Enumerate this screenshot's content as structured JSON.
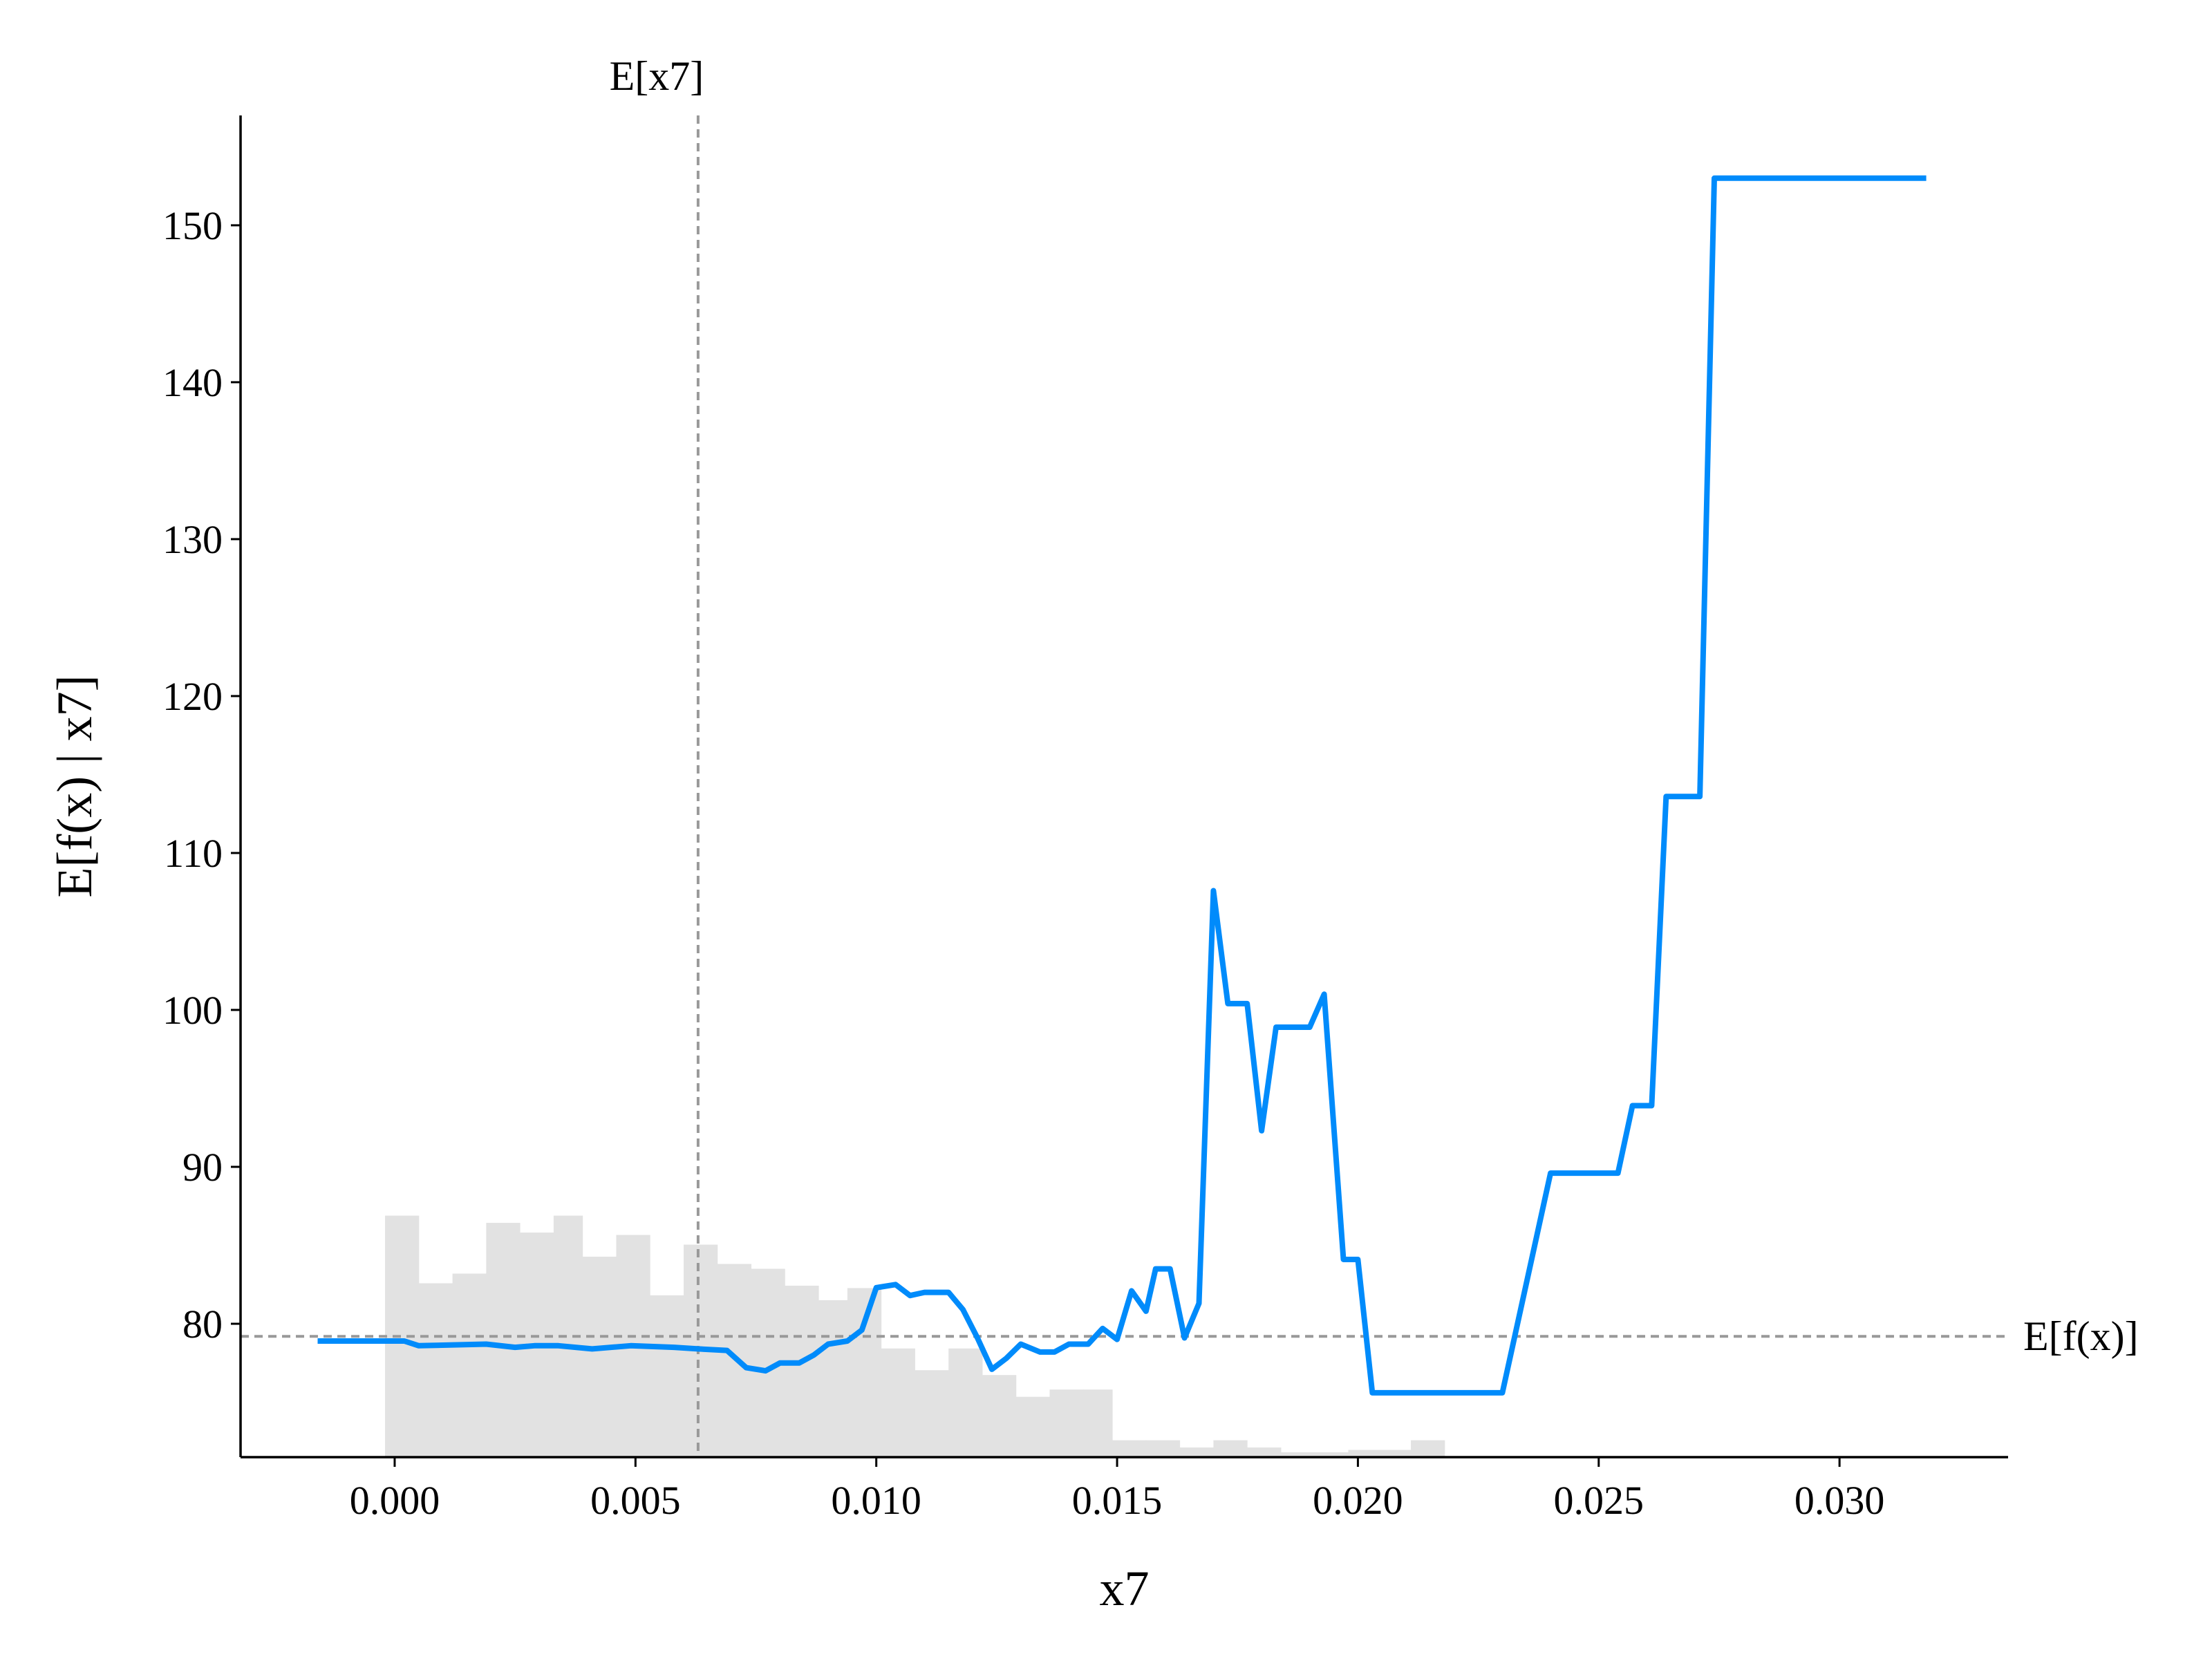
{
  "chart_data": {
    "type": "line",
    "xlabel": "x7",
    "ylabel": "E[f(x) | x7]",
    "xlim": [
      -0.0032,
      0.0335
    ],
    "ylim": [
      71.5,
      157
    ],
    "x_ticks": [
      0.0,
      0.005,
      0.01,
      0.015,
      0.02,
      0.025,
      0.03
    ],
    "x_tick_labels": [
      "0.000",
      "0.005",
      "0.010",
      "0.015",
      "0.020",
      "0.025",
      "0.030"
    ],
    "y_ticks": [
      80,
      90,
      100,
      110,
      120,
      130,
      140,
      150
    ],
    "y_tick_labels": [
      "80",
      "90",
      "100",
      "110",
      "120",
      "130",
      "140",
      "150"
    ],
    "grid": false,
    "reference_lines": {
      "vertical": {
        "x": 0.0063,
        "label": "E[x7]"
      },
      "horizontal": {
        "y": 79.2,
        "label": "E[f(x)]"
      }
    },
    "colors": {
      "line": "#008bfb",
      "reference": "#999999",
      "histogram": "#e2e2e2",
      "axis": "#000000"
    },
    "series": [
      {
        "x": [
          -0.0016,
          0.0002,
          0.0005,
          0.0019,
          0.0025,
          0.0029,
          0.0034,
          0.0041,
          0.0049,
          0.0058,
          0.0063,
          0.0069,
          0.0073,
          0.0077,
          0.008,
          0.0084,
          0.0087,
          0.009,
          0.0094,
          0.0097,
          0.01,
          0.0104,
          0.0107,
          0.011,
          0.0115,
          0.0118,
          0.0121,
          0.0124,
          0.0127,
          0.013,
          0.0134,
          0.0137,
          0.014,
          0.0144,
          0.0147,
          0.015,
          0.0153,
          0.0156,
          0.0158,
          0.0161,
          0.0164,
          0.0167,
          0.017,
          0.0173,
          0.0177,
          0.018,
          0.0183,
          0.0187,
          0.019,
          0.0193,
          0.0197,
          0.02,
          0.0203,
          0.0206,
          0.0211,
          0.022,
          0.023,
          0.024,
          0.0254,
          0.0257,
          0.0261,
          0.0264,
          0.0271,
          0.0274,
          0.0288,
          0.0291,
          0.0301,
          0.0318
        ],
        "y": [
          78.9,
          78.9,
          78.6,
          78.7,
          78.5,
          78.6,
          78.6,
          78.4,
          78.6,
          78.5,
          78.4,
          78.3,
          77.2,
          77.0,
          77.5,
          77.5,
          78.0,
          78.7,
          78.9,
          79.6,
          82.3,
          82.5,
          81.8,
          82.0,
          82.0,
          80.9,
          79.1,
          77.1,
          77.8,
          78.7,
          78.2,
          78.2,
          78.7,
          78.7,
          79.7,
          79.0,
          82.1,
          80.8,
          83.5,
          83.5,
          79.1,
          81.3,
          107.6,
          100.4,
          100.4,
          92.3,
          98.9,
          98.9,
          98.9,
          101.0,
          84.1,
          84.1,
          75.6,
          75.6,
          75.6,
          75.6,
          75.6,
          89.6,
          89.6,
          93.9,
          93.9,
          113.6,
          113.6,
          153.0,
          153.0,
          153.0,
          153.0,
          153.0
        ]
      }
    ],
    "histogram": {
      "bin_edges": [
        -0.0002,
        0.0005,
        0.0012,
        0.0019,
        0.0026,
        0.0033,
        0.0039,
        0.0046,
        0.0053,
        0.006,
        0.0067,
        0.0074,
        0.0081,
        0.0088,
        0.0094,
        0.0101,
        0.0108,
        0.0115,
        0.0122,
        0.0129,
        0.0136,
        0.0143,
        0.0149,
        0.0156,
        0.0163,
        0.017,
        0.0177,
        0.0184,
        0.0191,
        0.0198,
        0.0204,
        0.0211,
        0.0218
      ],
      "relative_heights": [
        1.0,
        0.72,
        0.76,
        0.97,
        0.93,
        1.0,
        0.83,
        0.92,
        0.67,
        0.88,
        0.8,
        0.78,
        0.71,
        0.65,
        0.7,
        0.45,
        0.36,
        0.45,
        0.34,
        0.25,
        0.28,
        0.28,
        0.07,
        0.07,
        0.04,
        0.07,
        0.04,
        0.02,
        0.02,
        0.03,
        0.03,
        0.07
      ]
    }
  }
}
